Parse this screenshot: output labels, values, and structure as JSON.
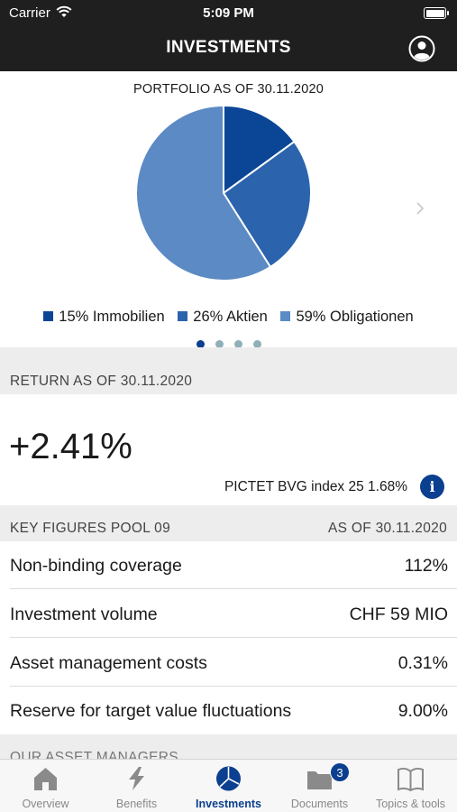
{
  "status_bar": {
    "carrier": "Carrier",
    "time": "5:09 PM"
  },
  "nav": {
    "title": "INVESTMENTS",
    "profile_icon": "profile-icon"
  },
  "portfolio": {
    "heading": "PORTFOLIO AS OF 30.11.2020",
    "legend": [
      {
        "label": "15% Immobilien",
        "color": "#0b4596"
      },
      {
        "label": "26% Aktien",
        "color": "#2b64ad"
      },
      {
        "label": "59% Obligationen",
        "color": "#5b8ac4"
      }
    ],
    "page_count": 4,
    "active_page": 0
  },
  "chart_data": {
    "type": "pie",
    "title": "PORTFOLIO AS OF 30.11.2020",
    "categories": [
      "Immobilien",
      "Aktien",
      "Obligationen"
    ],
    "values": [
      15,
      26,
      59
    ],
    "colors": [
      "#0b4596",
      "#2b64ad",
      "#5b8ac4"
    ],
    "legend_position": "bottom"
  },
  "return_section": {
    "header": "RETURN AS OF 30.11.2020",
    "value": "+2.41%",
    "benchmark": "PICTET BVG index 25 1.68%",
    "info_label": "i"
  },
  "key_figures": {
    "header_left": "KEY FIGURES POOL 09",
    "header_right": "AS OF 30.11.2020",
    "rows": [
      {
        "label": "Non-binding coverage",
        "value": "112%"
      },
      {
        "label": "Investment volume",
        "value": "CHF 59 MIO"
      },
      {
        "label": "Asset management costs",
        "value": "0.31%"
      },
      {
        "label": "Reserve for target value fluctuations",
        "value": "9.00%"
      }
    ]
  },
  "asset_managers": {
    "header": "OUR ASSET MANAGERS"
  },
  "tabs": [
    {
      "label": "Overview",
      "icon": "house-icon"
    },
    {
      "label": "Benefits",
      "icon": "lightning-icon"
    },
    {
      "label": "Investments",
      "icon": "pie-chart-icon"
    },
    {
      "label": "Documents",
      "icon": "folder-icon",
      "badge": "3"
    },
    {
      "label": "Topics & tools",
      "icon": "book-icon"
    }
  ],
  "colors": {
    "accent": "#0b3f8f",
    "bar": "#1f1f1f",
    "section_bg": "#ededed"
  }
}
